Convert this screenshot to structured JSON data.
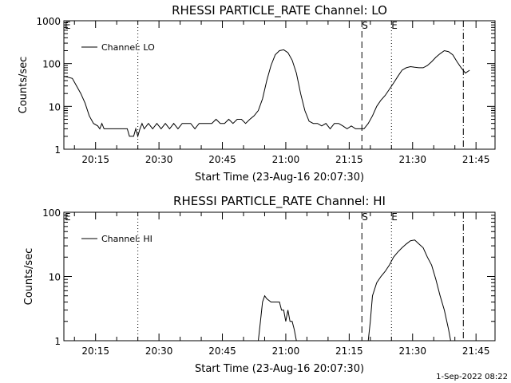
{
  "chart_data": [
    {
      "type": "line",
      "title": "RHESSI PARTICLE_RATE Channel: LO",
      "xlabel": "Start Time (23-Aug-16 20:07:30)",
      "ylabel": "Counts/sec",
      "yscale": "log",
      "ylim": [
        1,
        1000
      ],
      "xlim_minutes": [
        0,
        102
      ],
      "xtick_labels": [
        "20:15",
        "20:30",
        "20:45",
        "21:00",
        "21:15",
        "21:30",
        "21:45"
      ],
      "ytick_labels": [
        "1",
        "10",
        "100",
        "1000"
      ],
      "legend": "Channel: LO",
      "marker_E": "E",
      "marker_S": "S",
      "markers": [
        {
          "label": "E",
          "minute": 0,
          "style": "solid"
        },
        {
          "label": "",
          "minute": 17.5,
          "style": "dotted"
        },
        {
          "label": "S",
          "minute": 70.5,
          "style": "dashed"
        },
        {
          "label": "E",
          "minute": 77.5,
          "style": "dotted"
        },
        {
          "label": "",
          "minute": 94.5,
          "style": "dashdot"
        }
      ],
      "series": [
        {
          "name": "Channel: LO",
          "points": [
            [
              0,
              50
            ],
            [
              1,
              48
            ],
            [
              2,
              45
            ],
            [
              3,
              30
            ],
            [
              4,
              20
            ],
            [
              5,
              12
            ],
            [
              6,
              6
            ],
            [
              7,
              4
            ],
            [
              8,
              3.5
            ],
            [
              8.5,
              3
            ],
            [
              9,
              4
            ],
            [
              9.5,
              3
            ],
            [
              10,
              3
            ],
            [
              11,
              3
            ],
            [
              12,
              3
            ],
            [
              13,
              3
            ],
            [
              14,
              3
            ],
            [
              15,
              3
            ],
            [
              15.5,
              2
            ],
            [
              16,
              2
            ],
            [
              16.5,
              2
            ],
            [
              17,
              3
            ],
            [
              17.5,
              2
            ],
            [
              18,
              3
            ],
            [
              18.5,
              4
            ],
            [
              19,
              3
            ],
            [
              20,
              4
            ],
            [
              21,
              3
            ],
            [
              22,
              4
            ],
            [
              23,
              3
            ],
            [
              24,
              4
            ],
            [
              25,
              3
            ],
            [
              26,
              4
            ],
            [
              27,
              3
            ],
            [
              28,
              4
            ],
            [
              29,
              4
            ],
            [
              30,
              4
            ],
            [
              31,
              3
            ],
            [
              32,
              4
            ],
            [
              33,
              4
            ],
            [
              34,
              4
            ],
            [
              35,
              4
            ],
            [
              36,
              5
            ],
            [
              37,
              4
            ],
            [
              38,
              4
            ],
            [
              39,
              5
            ],
            [
              40,
              4
            ],
            [
              41,
              5
            ],
            [
              42,
              5
            ],
            [
              43,
              4
            ],
            [
              44,
              5
            ],
            [
              45,
              6
            ],
            [
              46,
              8
            ],
            [
              47,
              15
            ],
            [
              48,
              40
            ],
            [
              49,
              90
            ],
            [
              50,
              160
            ],
            [
              51,
              200
            ],
            [
              52,
              210
            ],
            [
              53,
              180
            ],
            [
              54,
              120
            ],
            [
              55,
              60
            ],
            [
              56,
              20
            ],
            [
              57,
              8
            ],
            [
              58,
              4.5
            ],
            [
              59,
              4
            ],
            [
              60,
              4
            ],
            [
              61,
              3.5
            ],
            [
              62,
              4
            ],
            [
              63,
              3
            ],
            [
              64,
              4
            ],
            [
              65,
              4
            ],
            [
              66,
              3.5
            ],
            [
              67,
              3
            ],
            [
              68,
              3.5
            ],
            [
              69,
              3
            ],
            [
              70,
              3
            ],
            [
              71,
              3
            ],
            [
              72,
              4
            ],
            [
              73,
              6
            ],
            [
              74,
              10
            ],
            [
              75,
              14
            ],
            [
              76,
              18
            ],
            [
              77,
              25
            ],
            [
              78,
              35
            ],
            [
              79,
              50
            ],
            [
              80,
              70
            ],
            [
              81,
              80
            ],
            [
              82,
              85
            ],
            [
              83,
              82
            ],
            [
              84,
              80
            ],
            [
              85,
              80
            ],
            [
              86,
              90
            ],
            [
              87,
              110
            ],
            [
              88,
              140
            ],
            [
              89,
              170
            ],
            [
              90,
              200
            ],
            [
              91,
              190
            ],
            [
              92,
              160
            ],
            [
              93,
              110
            ],
            [
              94,
              80
            ],
            [
              95,
              60
            ],
            [
              96,
              70
            ]
          ]
        }
      ]
    },
    {
      "type": "line",
      "title": "RHESSI PARTICLE_RATE Channel: HI",
      "xlabel": "Start Time (23-Aug-16 20:07:30)",
      "ylabel": "Counts/sec",
      "yscale": "log",
      "ylim": [
        1,
        100
      ],
      "xlim_minutes": [
        0,
        102
      ],
      "xtick_labels": [
        "20:15",
        "20:30",
        "20:45",
        "21:00",
        "21:15",
        "21:30",
        "21:45"
      ],
      "ytick_labels": [
        "1",
        "10",
        "100"
      ],
      "legend": "Channel: HI",
      "marker_E": "E",
      "marker_S": "S",
      "markers": [
        {
          "label": "E",
          "minute": 0,
          "style": "solid"
        },
        {
          "label": "",
          "minute": 17.5,
          "style": "dotted"
        },
        {
          "label": "S",
          "minute": 70.5,
          "style": "dashed"
        },
        {
          "label": "E",
          "minute": 77.5,
          "style": "dotted"
        },
        {
          "label": "",
          "minute": 94.5,
          "style": "dashdot"
        }
      ],
      "series": [
        {
          "name": "Channel: HI",
          "points": [
            [
              46,
              1
            ],
            [
              46.5,
              2
            ],
            [
              47,
              4
            ],
            [
              47.5,
              5
            ],
            [
              48,
              4.5
            ],
            [
              49,
              4
            ],
            [
              50,
              4
            ],
            [
              51,
              4
            ],
            [
              51.5,
              3
            ],
            [
              52,
              3
            ],
            [
              52.5,
              2
            ],
            [
              53,
              3
            ],
            [
              53.5,
              2
            ],
            [
              54,
              2
            ],
            [
              54.5,
              1.5
            ],
            [
              55,
              1
            ],
            [
              72,
              1
            ],
            [
              72.5,
              2
            ],
            [
              73,
              5
            ],
            [
              74,
              8
            ],
            [
              75,
              10
            ],
            [
              76,
              12
            ],
            [
              77,
              15
            ],
            [
              78,
              20
            ],
            [
              79,
              24
            ],
            [
              80,
              28
            ],
            [
              81,
              32
            ],
            [
              82,
              36
            ],
            [
              83,
              37
            ],
            [
              84,
              32
            ],
            [
              85,
              28
            ],
            [
              86,
              20
            ],
            [
              87,
              15
            ],
            [
              88,
              9
            ],
            [
              89,
              5
            ],
            [
              90,
              3
            ],
            [
              91,
              1.5
            ],
            [
              91.5,
              1
            ]
          ]
        }
      ]
    }
  ],
  "footer_stamp": "1-Sep-2022 08:22"
}
